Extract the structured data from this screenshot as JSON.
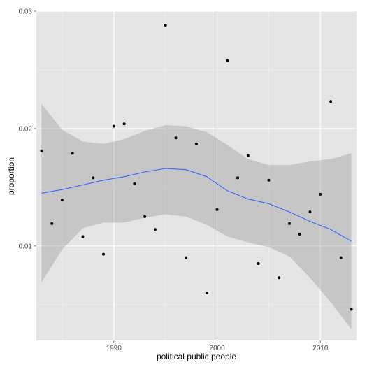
{
  "chart_data": {
    "type": "scatter",
    "title": "",
    "xlabel": "political public people",
    "ylabel": "proportion",
    "xlim": [
      1982.5,
      2013.5
    ],
    "ylim": [
      0.00195,
      0.03
    ],
    "x_ticks": [
      1990,
      2000,
      2010
    ],
    "x_tick_labels": [
      "1990",
      "2000",
      "2010"
    ],
    "y_ticks": [
      0.01,
      0.02,
      0.03
    ],
    "y_tick_labels": [
      "0.01",
      "0.02",
      "0.03"
    ],
    "grid": true,
    "colors": {
      "panel_background": "#e5e5e5",
      "grid_major": "#ffffff",
      "grid_minor": "#f2f2f2",
      "points": "#000000",
      "smooth_line": "#3366ff",
      "confidence_band": "#999999"
    },
    "points": [
      {
        "x": 1983,
        "y": 0.0181
      },
      {
        "x": 1984,
        "y": 0.0119
      },
      {
        "x": 1985,
        "y": 0.0139
      },
      {
        "x": 1986,
        "y": 0.0179
      },
      {
        "x": 1987,
        "y": 0.0108
      },
      {
        "x": 1988,
        "y": 0.0158
      },
      {
        "x": 1989,
        "y": 0.0093
      },
      {
        "x": 1990,
        "y": 0.0202
      },
      {
        "x": 1991,
        "y": 0.0204
      },
      {
        "x": 1992,
        "y": 0.0153
      },
      {
        "x": 1993,
        "y": 0.0125
      },
      {
        "x": 1994,
        "y": 0.0114
      },
      {
        "x": 1995,
        "y": 0.0288
      },
      {
        "x": 1996,
        "y": 0.0192
      },
      {
        "x": 1997,
        "y": 0.009
      },
      {
        "x": 1998,
        "y": 0.0187
      },
      {
        "x": 1999,
        "y": 0.006
      },
      {
        "x": 2000,
        "y": 0.0131
      },
      {
        "x": 2001,
        "y": 0.0258
      },
      {
        "x": 2002,
        "y": 0.0158
      },
      {
        "x": 2003,
        "y": 0.0177
      },
      {
        "x": 2004,
        "y": 0.0085
      },
      {
        "x": 2005,
        "y": 0.0156
      },
      {
        "x": 2006,
        "y": 0.0073
      },
      {
        "x": 2007,
        "y": 0.0119
      },
      {
        "x": 2008,
        "y": 0.011
      },
      {
        "x": 2009,
        "y": 0.0129
      },
      {
        "x": 2010,
        "y": 0.0144
      },
      {
        "x": 2011,
        "y": 0.0223
      },
      {
        "x": 2012,
        "y": 0.009
      },
      {
        "x": 2013,
        "y": 0.0046
      }
    ],
    "smooth": {
      "x": [
        1983,
        1985,
        1987,
        1989,
        1991,
        1993,
        1995,
        1997,
        1999,
        2001,
        2003,
        2005,
        2007,
        2009,
        2011,
        2013
      ],
      "y": [
        0.0145,
        0.0148,
        0.0152,
        0.0156,
        0.0159,
        0.0163,
        0.0166,
        0.0165,
        0.0159,
        0.0147,
        0.014,
        0.0136,
        0.0129,
        0.0121,
        0.0114,
        0.0104
      ],
      "upper": [
        0.0221,
        0.0199,
        0.0189,
        0.0187,
        0.0191,
        0.0198,
        0.0203,
        0.0202,
        0.0197,
        0.0186,
        0.0174,
        0.0169,
        0.0169,
        0.0172,
        0.0174,
        0.0179
      ],
      "lower": [
        0.0069,
        0.0097,
        0.0115,
        0.012,
        0.012,
        0.0124,
        0.0127,
        0.0125,
        0.0118,
        0.0108,
        0.0103,
        0.0099,
        0.0091,
        0.0073,
        0.0052,
        0.0029
      ]
    }
  }
}
